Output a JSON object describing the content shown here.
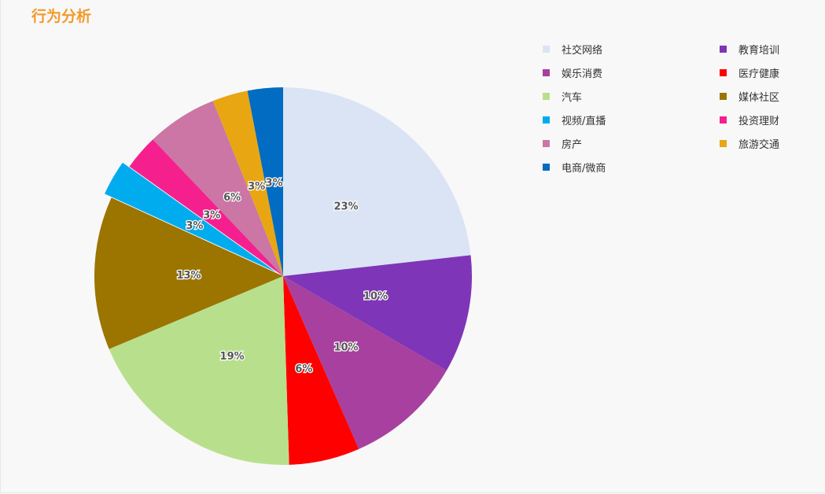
{
  "header": {
    "title": "行为分析"
  },
  "chart_data": {
    "type": "pie",
    "title": "",
    "slices": [
      {
        "label": "社交网络",
        "value": 23,
        "display": "23%",
        "color": "#dbe4f4"
      },
      {
        "label": "教育培训",
        "value": 10,
        "display": "10%",
        "color": "#7f35b8"
      },
      {
        "label": "娱乐消费",
        "value": 10,
        "display": "10%",
        "color": "#a840a0"
      },
      {
        "label": "医疗健康",
        "value": 6,
        "display": "6%",
        "color": "#ff0000"
      },
      {
        "label": "汽车",
        "value": 19,
        "display": "19%",
        "color": "#b8e08c"
      },
      {
        "label": "媒体社区",
        "value": 13,
        "display": "13%",
        "color": "#9c7400"
      },
      {
        "label": "视频/直播",
        "value": 3,
        "display": "3%",
        "color": "#00acee",
        "exploded": true
      },
      {
        "label": "投资理财",
        "value": 3,
        "display": "3%",
        "color": "#f5208e"
      },
      {
        "label": "房产",
        "value": 6,
        "display": "6%",
        "color": "#cb76a5"
      },
      {
        "label": "旅游交通",
        "value": 3,
        "display": "3%",
        "color": "#e8a612"
      },
      {
        "label": "电商/微商",
        "value": 3,
        "display": "3%",
        "color": "#016cc2"
      }
    ],
    "legend_placement": "right",
    "legend_order": [
      "社交网络",
      "教育培训",
      "娱乐消费",
      "医疗健康",
      "汽车",
      "媒体社区",
      "视频/直播",
      "投资理财",
      "房产",
      "旅游交通",
      "电商/微商"
    ]
  }
}
